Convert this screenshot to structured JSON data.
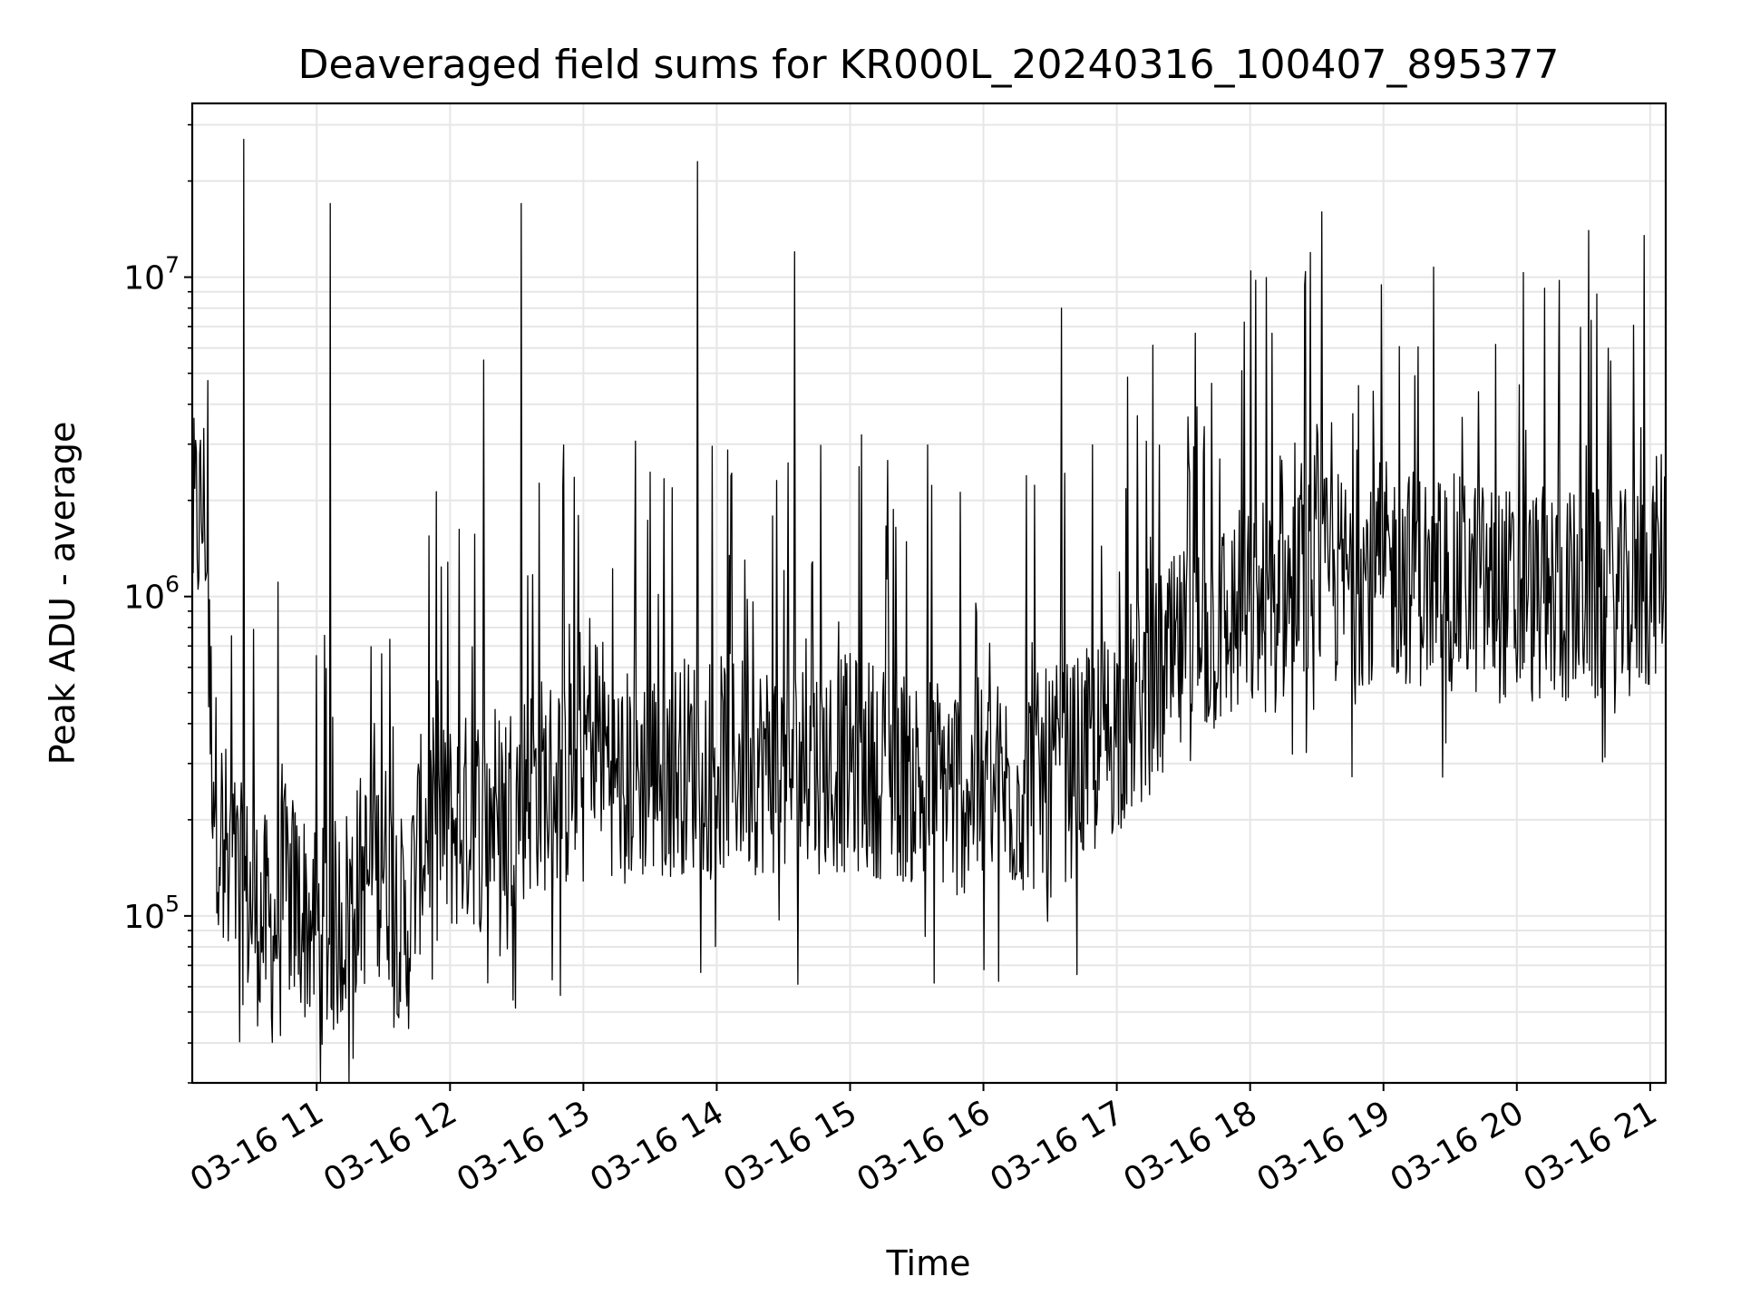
{
  "chart_data": {
    "type": "line",
    "title": "Deaveraged field sums for KR000L_20240316_100407_895377",
    "xlabel": "Time",
    "ylabel": "Peak ADU - average",
    "yscale": "log",
    "grid": true,
    "line_color": "#000000",
    "xlim": [
      "2024-03-16T10:04",
      "2024-03-16T21:07"
    ],
    "ylim": [
      30000,
      35000000
    ],
    "x_ticks": [
      {
        "label": "03-16 11",
        "value": "2024-03-16T11:00"
      },
      {
        "label": "03-16 12",
        "value": "2024-03-16T12:00"
      },
      {
        "label": "03-16 13",
        "value": "2024-03-16T13:00"
      },
      {
        "label": "03-16 14",
        "value": "2024-03-16T14:00"
      },
      {
        "label": "03-16 15",
        "value": "2024-03-16T15:00"
      },
      {
        "label": "03-16 16",
        "value": "2024-03-16T16:00"
      },
      {
        "label": "03-16 17",
        "value": "2024-03-16T17:00"
      },
      {
        "label": "03-16 18",
        "value": "2024-03-16T18:00"
      },
      {
        "label": "03-16 19",
        "value": "2024-03-16T19:00"
      },
      {
        "label": "03-16 20",
        "value": "2024-03-16T20:00"
      },
      {
        "label": "03-16 21",
        "value": "2024-03-16T21:00"
      }
    ],
    "y_ticks": [
      {
        "base": "10",
        "exp": "5",
        "value": 100000
      },
      {
        "base": "10",
        "exp": "6",
        "value": 1000000
      },
      {
        "base": "10",
        "exp": "7",
        "value": 10000000
      }
    ],
    "series": [
      {
        "x": [
          "2024-03-16T10:04",
          "2024-03-16T10:10",
          "2024-03-16T10:12",
          "2024-03-16T10:15",
          "2024-03-16T10:20",
          "2024-03-16T10:25",
          "2024-03-16T10:27",
          "2024-03-16T10:30",
          "2024-03-16T10:33",
          "2024-03-16T10:37",
          "2024-03-16T10:40",
          "2024-03-16T10:45",
          "2024-03-16T10:50",
          "2024-03-16T10:55",
          "2024-03-16T11:00",
          "2024-03-16T11:05",
          "2024-03-16T11:06",
          "2024-03-16T11:10",
          "2024-03-16T11:15",
          "2024-03-16T11:20",
          "2024-03-16T11:25",
          "2024-03-16T11:30",
          "2024-03-16T11:35",
          "2024-03-16T11:40",
          "2024-03-16T11:45",
          "2024-03-16T11:50",
          "2024-03-16T11:55",
          "2024-03-16T12:00",
          "2024-03-16T12:10",
          "2024-03-16T12:15",
          "2024-03-16T12:20",
          "2024-03-16T12:30",
          "2024-03-16T12:32",
          "2024-03-16T12:35",
          "2024-03-16T12:40",
          "2024-03-16T12:50",
          "2024-03-16T13:00",
          "2024-03-16T13:03",
          "2024-03-16T13:15",
          "2024-03-16T13:30",
          "2024-03-16T13:45",
          "2024-03-16T13:51",
          "2024-03-16T14:00",
          "2024-03-16T14:15",
          "2024-03-16T14:30",
          "2024-03-16T14:35",
          "2024-03-16T14:45",
          "2024-03-16T15:00",
          "2024-03-16T15:15",
          "2024-03-16T15:30",
          "2024-03-16T15:45",
          "2024-03-16T16:00",
          "2024-03-16T16:15",
          "2024-03-16T16:30",
          "2024-03-16T16:35",
          "2024-03-16T16:45",
          "2024-03-16T17:00",
          "2024-03-16T17:15",
          "2024-03-16T17:30",
          "2024-03-16T17:45",
          "2024-03-16T18:00",
          "2024-03-16T18:15",
          "2024-03-16T18:30",
          "2024-03-16T18:32",
          "2024-03-16T18:45",
          "2024-03-16T19:00",
          "2024-03-16T19:15",
          "2024-03-16T19:30",
          "2024-03-16T19:45",
          "2024-03-16T20:00",
          "2024-03-16T20:15",
          "2024-03-16T20:30",
          "2024-03-16T20:32",
          "2024-03-16T20:45",
          "2024-03-16T20:57",
          "2024-03-16T21:00",
          "2024-03-16T21:07"
        ],
        "values": [
          1600000,
          1900000,
          450000,
          220000,
          150000,
          120000,
          27000000,
          110000,
          100000,
          95000,
          85000,
          120000,
          110000,
          100000,
          90000,
          85000,
          17000000,
          95000,
          110000,
          130000,
          130000,
          150000,
          120000,
          80000,
          150000,
          200000,
          180000,
          190000,
          200000,
          5500000,
          220000,
          230000,
          17000000,
          250000,
          260000,
          260000,
          270000,
          450000,
          270000,
          280000,
          300000,
          23000000,
          300000,
          300000,
          290000,
          12000000,
          300000,
          300000,
          290000,
          270000,
          260000,
          250000,
          250000,
          270000,
          8000000,
          300000,
          400000,
          500000,
          650000,
          800000,
          900000,
          1000000,
          1100000,
          16000000,
          1150000,
          1200000,
          1150000,
          1100000,
          1050000,
          1000000,
          1000000,
          1000000,
          14000000,
          950000,
          13500000,
          1100000,
          1500000
        ]
      }
    ]
  }
}
